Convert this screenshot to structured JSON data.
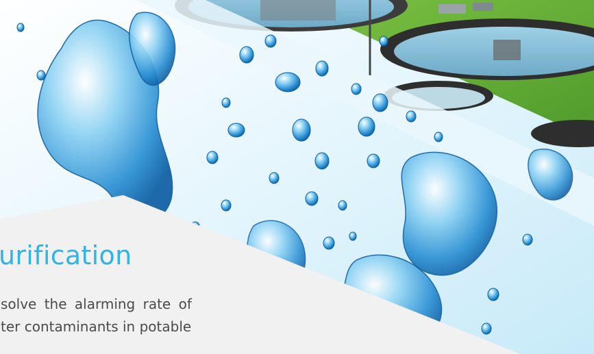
{
  "colors": {
    "title": "#2fb4e6",
    "body_text": "#4a4a4a",
    "caption_panel": "#f1f1f1",
    "water_light": "#d9f1fb",
    "water_deep": "#1d7fc4",
    "grass": "#6fb83a",
    "tank_water": "#8fc4dc"
  },
  "caption": {
    "title": "urification",
    "body_line_1": "solve the alarming rate of",
    "body_line_2": "ter contaminants in potable"
  },
  "image": {
    "background_photo": "water-treatment-plant-settling-tanks",
    "foreground_photo": "water-splash-bubbles"
  }
}
